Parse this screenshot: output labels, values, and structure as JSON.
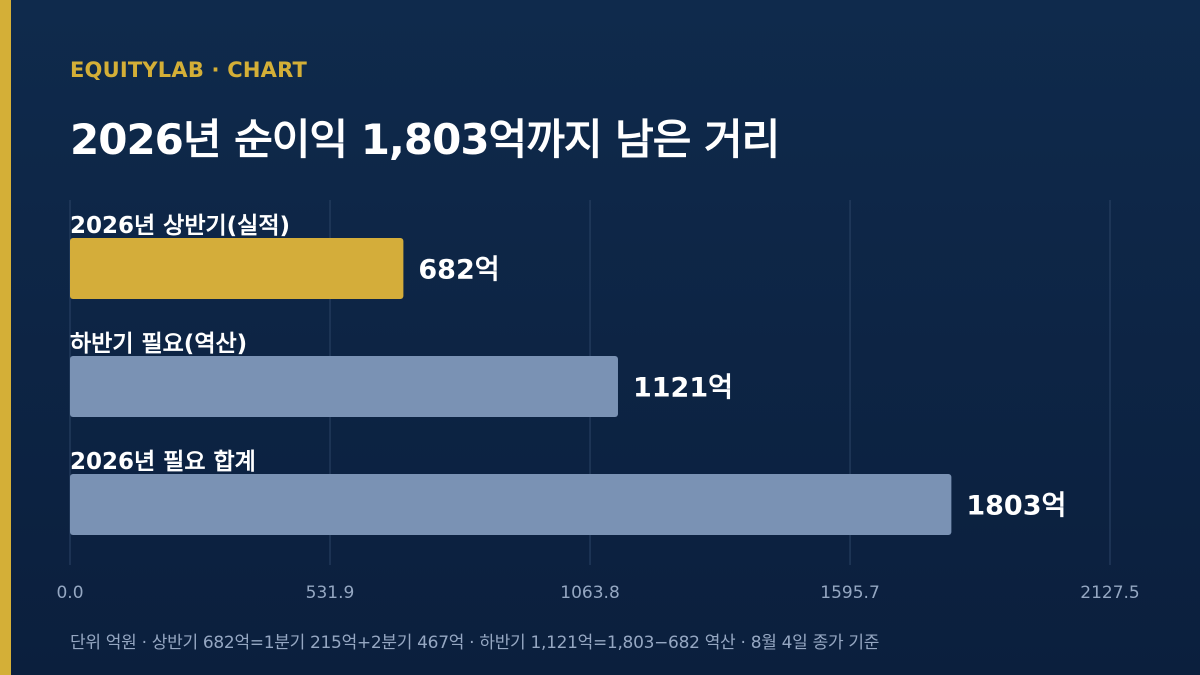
{
  "brand": "EQUITYLAB · CHART",
  "title": "2026년 순이익 1,803억까지 남은 거리",
  "footnote": "단위 억원 · 상반기 682억=1분기 215억+2분기 467억 · 하반기 1,121억=1,803−682 역산 · 8월 4일 종가 기준",
  "colors": {
    "background": "#0f2a4c",
    "accent": "#d4af37",
    "actual_bar": "#d4ad3a",
    "required_bar": "#7a92b4",
    "text": "#ffffff",
    "muted_text": "#95a7c2",
    "gridline": "#2c4466"
  },
  "chart_data": {
    "type": "bar",
    "orientation": "horizontal",
    "categories": [
      "2026년 상반기(실적)",
      "하반기 필요(역산)",
      "2026년 필요 합계"
    ],
    "values": [
      682,
      1121,
      1803
    ],
    "value_labels": [
      "682억",
      "1121억",
      "1803억"
    ],
    "bar_colors": [
      "#d4ad3a",
      "#7a92b4",
      "#7a92b4"
    ],
    "xlim": [
      0,
      2127.5
    ],
    "xticks": [
      0,
      531.9,
      1063.8,
      1595.7,
      2127.5
    ],
    "xtick_labels": [
      "0.0",
      "531.9",
      "1063.8",
      "1595.7",
      "2127.5"
    ],
    "grid": true,
    "xlabel": "",
    "ylabel": ""
  }
}
